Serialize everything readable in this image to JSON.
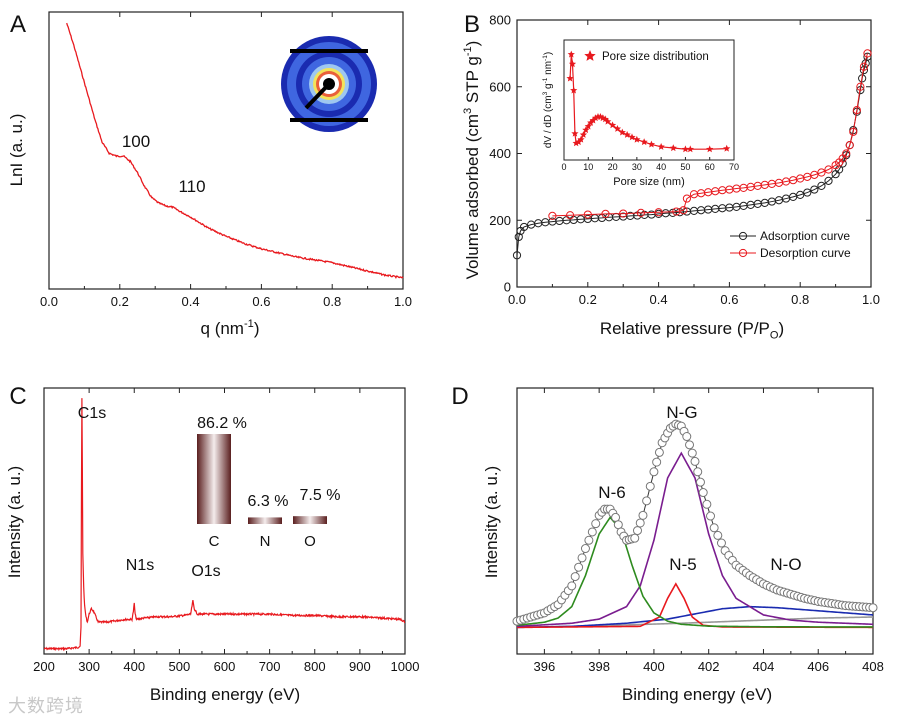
{
  "chart_data": [
    {
      "id": "A",
      "panel_label": "A",
      "type": "line",
      "xlabel": "q (nm",
      "xlabel_sup": "-1",
      "xlabel_end": ")",
      "ylabel": "LnI (a. u.)",
      "xlim": [
        0.0,
        1.0
      ],
      "ylim": [
        0,
        100
      ],
      "y_ticks_shown": false,
      "x_ticks": [
        "0.0",
        "0.2",
        "0.4",
        "0.6",
        "0.8",
        "1.0"
      ],
      "x_tick_values": [
        0.0,
        0.2,
        0.4,
        0.6,
        0.8,
        1.0
      ],
      "annotations": [
        "100",
        "110"
      ],
      "series": [
        {
          "color": "#e8191e",
          "x": [
            0.05,
            0.07,
            0.09,
            0.11,
            0.13,
            0.15,
            0.17,
            0.19,
            0.21,
            0.23,
            0.25,
            0.27,
            0.29,
            0.31,
            0.33,
            0.35,
            0.37,
            0.4,
            0.45,
            0.5,
            0.55,
            0.6,
            0.65,
            0.7,
            0.75,
            0.8,
            0.85,
            0.9,
            0.95,
            1.0
          ],
          "y": [
            96,
            88,
            79,
            70,
            61,
            53,
            49,
            48,
            48,
            46,
            42,
            37,
            33,
            31,
            30,
            29.5,
            28,
            26,
            22,
            19,
            16.5,
            14.5,
            13,
            11.5,
            10.5,
            9.5,
            8,
            6.5,
            5,
            4
          ]
        }
      ],
      "inset": {
        "type": "saxs-pattern",
        "ring_colors": [
          "#1a2bb0",
          "#3f66e0",
          "#9ec7f0",
          "#f2e35b",
          "#e95f3a",
          "#ffffff"
        ]
      }
    },
    {
      "id": "B",
      "panel_label": "B",
      "type": "line",
      "xlabel": "Relative pressure (P/P",
      "xlabel_sub": "O",
      "xlabel_end": ")",
      "ylabel": "Volume adsorbed (cm",
      "ylabel_sup1": "3",
      "ylabel_mid": " STP g",
      "ylabel_sup2": "-1",
      "ylabel_end": ")",
      "xlim": [
        0.0,
        1.0
      ],
      "ylim": [
        0,
        800
      ],
      "x_ticks": [
        "0.0",
        "0.2",
        "0.4",
        "0.6",
        "0.8",
        "1.0"
      ],
      "x_tick_values": [
        0.0,
        0.2,
        0.4,
        0.6,
        0.8,
        1.0
      ],
      "y_ticks": [
        "0",
        "200",
        "400",
        "600",
        "800"
      ],
      "y_tick_values": [
        0,
        200,
        400,
        600,
        800
      ],
      "legend": "bottom-right",
      "series": [
        {
          "name": "Adsorption curve",
          "color": "#222222",
          "marker": "open-circle",
          "x": [
            0.0,
            0.005,
            0.01,
            0.02,
            0.04,
            0.06,
            0.08,
            0.1,
            0.12,
            0.14,
            0.16,
            0.18,
            0.2,
            0.22,
            0.24,
            0.26,
            0.28,
            0.3,
            0.32,
            0.34,
            0.36,
            0.38,
            0.4,
            0.42,
            0.44,
            0.46,
            0.48,
            0.5,
            0.52,
            0.54,
            0.56,
            0.58,
            0.6,
            0.62,
            0.64,
            0.66,
            0.68,
            0.7,
            0.72,
            0.74,
            0.76,
            0.78,
            0.8,
            0.82,
            0.84,
            0.86,
            0.88,
            0.9,
            0.91,
            0.92,
            0.93,
            0.94,
            0.95,
            0.96,
            0.97,
            0.975,
            0.98,
            0.985,
            0.99
          ],
          "y": [
            95,
            150,
            168,
            180,
            187,
            191,
            194,
            196,
            198,
            200,
            201,
            203,
            204,
            206,
            207,
            209,
            210,
            211,
            213,
            214,
            216,
            217,
            219,
            221,
            222,
            224,
            226,
            228,
            230,
            232,
            234,
            236,
            238,
            240,
            243,
            246,
            249,
            252,
            256,
            260,
            265,
            270,
            276,
            283,
            292,
            303,
            318,
            338,
            352,
            370,
            395,
            425,
            470,
            525,
            590,
            625,
            650,
            670,
            690
          ]
        },
        {
          "name": "Desorption curve",
          "color": "#e8191e",
          "marker": "open-circle",
          "x": [
            0.1,
            0.15,
            0.2,
            0.25,
            0.3,
            0.35,
            0.4,
            0.45,
            0.47,
            0.48,
            0.5,
            0.52,
            0.54,
            0.56,
            0.58,
            0.6,
            0.62,
            0.64,
            0.66,
            0.68,
            0.7,
            0.72,
            0.74,
            0.76,
            0.78,
            0.8,
            0.82,
            0.84,
            0.86,
            0.88,
            0.9,
            0.91,
            0.92,
            0.93,
            0.94,
            0.95,
            0.96,
            0.97,
            0.98,
            0.99
          ],
          "y": [
            213,
            215,
            217,
            219,
            220,
            222,
            224,
            226,
            230,
            265,
            278,
            281,
            284,
            287,
            290,
            292,
            295,
            297,
            300,
            303,
            306,
            309,
            312,
            316,
            320,
            325,
            330,
            336,
            343,
            352,
            365,
            373,
            385,
            400,
            425,
            465,
            530,
            600,
            660,
            700
          ]
        }
      ],
      "inset": {
        "type": "line",
        "xlabel": "Pore size (nm)",
        "ylabel": "dV / dD (cm",
        "ylabel_sup1": "3",
        "ylabel_mid": " g",
        "ylabel_sup2": "-1",
        "ylabel_mid2": " nm",
        "ylabel_sup3": "-1",
        "ylabel_end": ")",
        "xlim": [
          0,
          70
        ],
        "ylim": [
          0,
          100
        ],
        "x_ticks": [
          "0",
          "10",
          "20",
          "30",
          "40",
          "50",
          "60",
          "70"
        ],
        "x_tick_values": [
          0,
          10,
          20,
          30,
          40,
          50,
          60,
          70
        ],
        "legend": "top-right",
        "series": [
          {
            "name": "Pore size distribution",
            "color": "#e8191e",
            "marker": "star",
            "x": [
              2.5,
              3.0,
              3.5,
              4.0,
              4.5,
              5,
              6,
              7,
              8,
              9,
              10,
              11,
              12,
              13,
              14,
              15,
              16,
              17,
              18,
              20,
              22,
              24,
              26,
              28,
              30,
              33,
              36,
              40,
              45,
              50,
              52,
              60,
              67
            ],
            "y": [
              68,
              88,
              80,
              58,
              22,
              14,
              15,
              17,
              21,
              25,
              28,
              31,
              33,
              35,
              36,
              36,
              35,
              34,
              32,
              29,
              26,
              23,
              21,
              19,
              17,
              15,
              13,
              11,
              10,
              9,
              9,
              9,
              9.5
            ]
          }
        ]
      }
    },
    {
      "id": "C",
      "panel_label": "C",
      "type": "line",
      "xlabel": "Binding energy (eV)",
      "ylabel": "Intensity (a. u.)",
      "xlim": [
        200,
        1000
      ],
      "ylim": [
        0,
        100
      ],
      "y_ticks_shown": false,
      "x_ticks": [
        "200",
        "300",
        "400",
        "500",
        "600",
        "700",
        "800",
        "900",
        "1000"
      ],
      "x_tick_values": [
        200,
        300,
        400,
        500,
        600,
        700,
        800,
        900,
        1000
      ],
      "annotations": [
        "C1s",
        "N1s",
        "O1s"
      ],
      "series": [
        {
          "color": "#e8191e",
          "x": [
            200,
            250,
            275,
            280,
            282,
            283,
            284,
            285,
            286,
            288,
            290,
            293,
            296,
            300,
            305,
            310,
            315,
            320,
            340,
            360,
            380,
            395,
            398,
            400,
            402,
            405,
            420,
            450,
            480,
            510,
            525,
            530,
            533,
            540,
            560,
            600,
            650,
            700,
            750,
            800,
            850,
            900,
            950,
            990,
            1000
          ],
          "y": [
            2,
            2,
            2.5,
            3,
            10,
            60,
            96,
            70,
            38,
            25,
            18,
            14,
            12,
            15,
            17,
            16,
            14,
            12,
            12,
            12.5,
            13,
            13,
            16,
            19,
            15,
            13,
            13.5,
            14,
            14,
            14.5,
            15,
            20,
            17,
            15,
            15,
            15,
            15,
            15,
            14.5,
            14.5,
            14,
            14,
            13.5,
            13,
            12
          ]
        }
      ],
      "inset": {
        "type": "bar",
        "categories": [
          "C",
          "N",
          "O"
        ],
        "values": [
          86.2,
          6.3,
          7.5
        ],
        "value_labels": [
          "86.2 %",
          "6.3 %",
          "7.5 %"
        ]
      }
    },
    {
      "id": "D",
      "panel_label": "D",
      "type": "line",
      "xlabel": "Binding energy (eV)",
      "ylabel": "Intensity (a. u.)",
      "xlim": [
        395,
        408
      ],
      "ylim": [
        0,
        100
      ],
      "y_ticks_shown": false,
      "x_ticks": [
        "396",
        "398",
        "400",
        "402",
        "404",
        "406",
        "408"
      ],
      "x_tick_values": [
        396,
        398,
        400,
        402,
        404,
        406,
        408
      ],
      "annotations": [
        "N-G",
        "N-6",
        "N-5",
        "N-O"
      ],
      "series": [
        {
          "color": "#333333",
          "marker": "open-circle",
          "peak": "sum",
          "x": [
            395,
            395.5,
            396,
            396.5,
            397,
            397.5,
            398,
            398.2,
            398.4,
            398.6,
            398.8,
            399,
            399.3,
            399.6,
            400,
            400.3,
            400.6,
            400.8,
            401,
            401.2,
            401.5,
            401.8,
            402.2,
            402.6,
            403,
            403.5,
            404,
            404.5,
            405,
            405.5,
            406,
            406.5,
            407,
            407.5,
            408
          ],
          "y": [
            3,
            5,
            7,
            11,
            20,
            38,
            54,
            57,
            57,
            53,
            46,
            42,
            43,
            54,
            75,
            89,
            96,
            98,
            97,
            92,
            80,
            65,
            48,
            37,
            30,
            25,
            21,
            18,
            16,
            14,
            12.5,
            11.5,
            10.5,
            10,
            9.5
          ]
        },
        {
          "color": "#2e8b1f",
          "peak": "N-6",
          "x": [
            395,
            396,
            396.5,
            397,
            397.5,
            398,
            398.4,
            398.8,
            399.2,
            399.6,
            400,
            400.5,
            401,
            402,
            404,
            408
          ],
          "y": [
            1,
            2.5,
            4.5,
            10,
            25,
            45,
            53,
            47,
            30,
            15,
            7,
            3,
            1.5,
            0.6,
            0.3,
            0.2
          ]
        },
        {
          "color": "#7a1d8f",
          "peak": "N-G",
          "x": [
            395,
            397,
            398,
            399,
            399.5,
            400,
            400.5,
            401,
            401.5,
            402,
            402.5,
            403,
            404,
            405,
            406,
            407,
            408
          ],
          "y": [
            0.5,
            2,
            4,
            10,
            20,
            42,
            72,
            84,
            72,
            45,
            25,
            14,
            6,
            3.5,
            2.5,
            2,
            1.5
          ]
        },
        {
          "color": "#e8191e",
          "peak": "N-5",
          "x": [
            395,
            399.5,
            400.2,
            400.5,
            400.8,
            401.1,
            401.4,
            401.8,
            402.5,
            408
          ],
          "y": [
            0,
            0.5,
            5,
            14,
            21,
            14,
            5,
            1,
            0.2,
            0
          ]
        },
        {
          "color": "#1a2bb0",
          "peak": "N-O",
          "x": [
            395,
            397,
            399,
            400.5,
            401.5,
            402.5,
            403.5,
            404.5,
            405.5,
            406.5,
            407.5,
            408
          ],
          "y": [
            0,
            0.5,
            2,
            4,
            6.5,
            9,
            10,
            9.5,
            8.5,
            7.5,
            6.5,
            6
          ]
        },
        {
          "color": "#999999",
          "peak": "background",
          "x": [
            395,
            398,
            401,
            404,
            406,
            408
          ],
          "y": [
            0,
            0.8,
            2,
            3.5,
            4.5,
            5
          ]
        }
      ]
    }
  ],
  "watermark": "大数跨境"
}
